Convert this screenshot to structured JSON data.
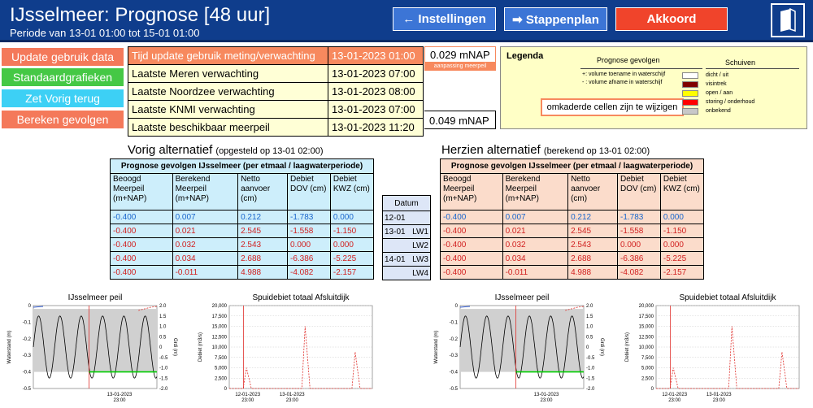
{
  "header": {
    "title": "IJsselmeer: Prognose [48 uur]",
    "subtitle": "Periode van 13-01 01:00 tot 15-01 01:00",
    "btn_settings": "← Instellingen",
    "btn_steps": "➡ Stappenplan",
    "btn_accept": "Akkoord",
    "book_icon": "book-icon"
  },
  "sidebar": {
    "buttons": [
      "Update gebruik data",
      "Standaardgrafieken",
      "Zet Vorig terug",
      "Bereken gevolgen"
    ],
    "colors": [
      "#f4795a",
      "#45c845",
      "#3dd0f5",
      "#f4795a"
    ]
  },
  "info": {
    "rows": [
      {
        "label": "Tijd update gebruik meting/verwachting",
        "value": "13-01-2023 01:00"
      },
      {
        "label": "Laatste Meren verwachting",
        "value": "13-01-2023 07:00"
      },
      {
        "label": "Laatste Noordzee verwachting",
        "value": "13-01-2023 08:00"
      },
      {
        "label": "Laatste KNMI verwachting",
        "value": "13-01-2023 07:00"
      },
      {
        "label": "Laatste beschikbaar meerpeil",
        "value": "13-01-2023 11:20"
      }
    ],
    "nap1": "0.029 mNAP",
    "nap1_note": "aanpassing meerpeil",
    "nap2": "0.049 mNAP"
  },
  "legend": {
    "title": "Legenda",
    "prog_title": "Prognose gevolgen",
    "prog_items": [
      "+: volume toename in waterschijf",
      "- : volume afname in waterschijf"
    ],
    "note": "omkaderde cellen zijn te wijzigen",
    "sch_title": "Schuiven",
    "sch_items": [
      {
        "label": "dicht / uit",
        "color": "#ffffff"
      },
      {
        "label": "visintrek",
        "color": "#800000"
      },
      {
        "label": "open / aan",
        "color": "#ffff00"
      },
      {
        "label": "storing / onderhoud",
        "color": "#ff0000"
      },
      {
        "label": "onbekend",
        "color": "#c8c8c8"
      }
    ]
  },
  "vorig": {
    "title": "Vorig alternatief",
    "sub": "(opgesteld op 13-01 02:00)",
    "table_title": "Prognose gevolgen IJsselmeer (per etmaal / laagwaterperiode)",
    "headers": [
      "Beoogd Meerpeil (m+NAP)",
      "Berekend Meerpeil (m+NAP)",
      "Netto aanvoer (cm)",
      "Debiet DOV (cm)",
      "Debiet KWZ (cm)"
    ],
    "rows": [
      [
        "-0.400",
        "0.007",
        "0.212",
        "-1.783",
        "0.000"
      ],
      [
        "-0.400",
        "0.021",
        "2.545",
        "-1.558",
        "-1.150"
      ],
      [
        "-0.400",
        "0.032",
        "2.543",
        "0.000",
        "0.000"
      ],
      [
        "-0.400",
        "0.034",
        "2.688",
        "-6.386",
        "-5.225"
      ],
      [
        "-0.400",
        "-0.011",
        "4.988",
        "-4.082",
        "-2.157"
      ]
    ]
  },
  "herzien": {
    "title": "Herzien alternatief",
    "sub": "(berekend op 13-01 02:00)",
    "table_title": "Prognose gevolgen IJsselmeer (per etmaal / laagwaterperiode)",
    "headers": [
      "Beoogd Meerpeil (m+NAP)",
      "Berekend Meerpeil (m+NAP)",
      "Netto aanvoer (cm)",
      "Debiet DOV (cm)",
      "Debiet KWZ (cm)"
    ],
    "rows": [
      [
        "-0.400",
        "0.007",
        "0.212",
        "-1.783",
        "0.000"
      ],
      [
        "-0.400",
        "0.021",
        "2.545",
        "-1.558",
        "-1.150"
      ],
      [
        "-0.400",
        "0.032",
        "2.543",
        "0.000",
        "0.000"
      ],
      [
        "-0.400",
        "0.034",
        "2.688",
        "-6.386",
        "-5.225"
      ],
      [
        "-0.400",
        "-0.011",
        "4.988",
        "-4.082",
        "-2.157"
      ]
    ]
  },
  "datum": {
    "header": "Datum",
    "rows": [
      [
        "12-01",
        ""
      ],
      [
        "13-01",
        "LW1"
      ],
      [
        "",
        "LW2"
      ],
      [
        "14-01",
        "LW3"
      ],
      [
        "",
        "LW4"
      ]
    ]
  },
  "chart_data": [
    {
      "type": "line",
      "title": "IJsselmeer peil",
      "ylabel": "Waterstand (m)",
      "y2label": "Grdi (m)",
      "ylim": [
        -0.5,
        0
      ],
      "y2lim": [
        -2.0,
        2.0
      ],
      "yticks": [
        "0",
        "-0.1",
        "-0.2",
        "-0.3",
        "-0.4",
        "-0.5"
      ],
      "y2ticks": [
        "2.0",
        "1.5",
        "1.0",
        "0.5",
        "0",
        "-0.5",
        "-1.0",
        "-1.5",
        "-2.0"
      ],
      "xtick": "13-01-2023\n23:00",
      "series": [
        {
          "type": "oscillation",
          "amplitude": 1.5,
          "center": 0,
          "periods": 5.8,
          "color": "#000000"
        },
        {
          "type": "level",
          "y": -0.4,
          "color": "#00cc00"
        }
      ]
    },
    {
      "type": "line",
      "title": "Spuidebiet totaal Afsluitdijk",
      "ylabel": "Debiet (m3/s)",
      "ylim": [
        0,
        20000
      ],
      "yticks": [
        "20,000",
        "17,500",
        "15,000",
        "12,500",
        "10,000",
        "7,500",
        "5,000",
        "2,500",
        "0"
      ],
      "xticks": [
        "12-01-2023\n23:00",
        "13-01-2023\n23:00"
      ],
      "peaks": [
        {
          "x": 0.12,
          "y": 5000
        },
        {
          "x": 0.53,
          "y": 15000
        },
        {
          "x": 0.88,
          "y": 8800
        }
      ]
    }
  ]
}
